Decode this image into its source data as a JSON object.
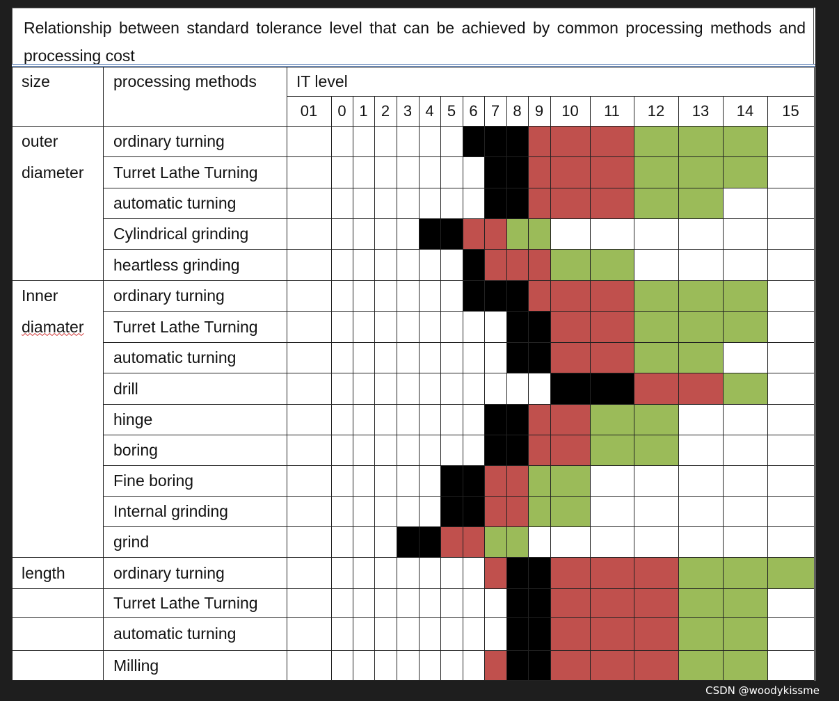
{
  "title": "Relationship between standard tolerance level that can be achieved by common processing methods and processing cost",
  "headers": {
    "size": "size",
    "method": "processing methods",
    "it_level": "IT level"
  },
  "levels": [
    "01",
    "0",
    "1",
    "2",
    "3",
    "4",
    "5",
    "6",
    "7",
    "8",
    "9",
    "10",
    "11",
    "12",
    "13",
    "14",
    "15"
  ],
  "legend_colors": {
    "B": "#000000",
    "R": "#c0504d",
    "G": "#9bbb59",
    "W": "#ffffff"
  },
  "rows": [
    {
      "size": "outer",
      "method": "ordinary turning",
      "cells": "WWWWWWWBBBRRRGGGW"
    },
    {
      "size": "diameter",
      "method": "Turret Lathe Turning",
      "cells": "WWWWWWWWBBRRRGGGW"
    },
    {
      "size": "",
      "method": "automatic turning",
      "cells": "WWWWWWWWBBRRRGGWW"
    },
    {
      "size": "",
      "method": "Cylindrical grinding",
      "cells": "WWWWWBBRRGGWWWWWW"
    },
    {
      "size": "",
      "method": "heartless grinding",
      "cells": "WWWWWWWBRRRGGWWWW"
    },
    {
      "size": "Inner",
      "method": "ordinary turning",
      "cells": "WWWWWWWBBBRRRGGGW"
    },
    {
      "size": "diamater",
      "method": "Turret Lathe Turning",
      "cells": "WWWWWWWWWBBRRGGGW"
    },
    {
      "size": "",
      "method": "automatic turning",
      "cells": "WWWWWWWWWBBRRGGWW"
    },
    {
      "size": "",
      "method": "drill",
      "cells": "WWWWWWWWWWWBBRRGW"
    },
    {
      "size": "",
      "method": "hinge",
      "cells": "WWWWWWWWBBRRGGWWW"
    },
    {
      "size": "",
      "method": "boring",
      "cells": "WWWWWWWWBBRRGGWWW"
    },
    {
      "size": "",
      "method": "Fine boring",
      "cells": "WWWWWWBBRRGGWWWWW"
    },
    {
      "size": "",
      "method": "Internal grinding",
      "cells": "WWWWWWBBRRGGWWWWW"
    },
    {
      "size": "",
      "method": "grind",
      "cells": "WWWWBBRRGGWWWWWWW"
    },
    {
      "size": "length",
      "method": "ordinary turning",
      "cells": "WWWWWWWWRBBRRRGGG"
    },
    {
      "size": "",
      "method": "Turret Lathe Turning",
      "cells": "WWWWWWWWWBBRRRGGW"
    },
    {
      "size": "",
      "method": "automatic turning",
      "cells": "WWWWWWWWWBBRRRGGW"
    },
    {
      "size": "",
      "method": "Milling",
      "cells": "WWWWWWWWRBBRRRGGW"
    }
  ],
  "watermark": "CSDN @woodykissme"
}
